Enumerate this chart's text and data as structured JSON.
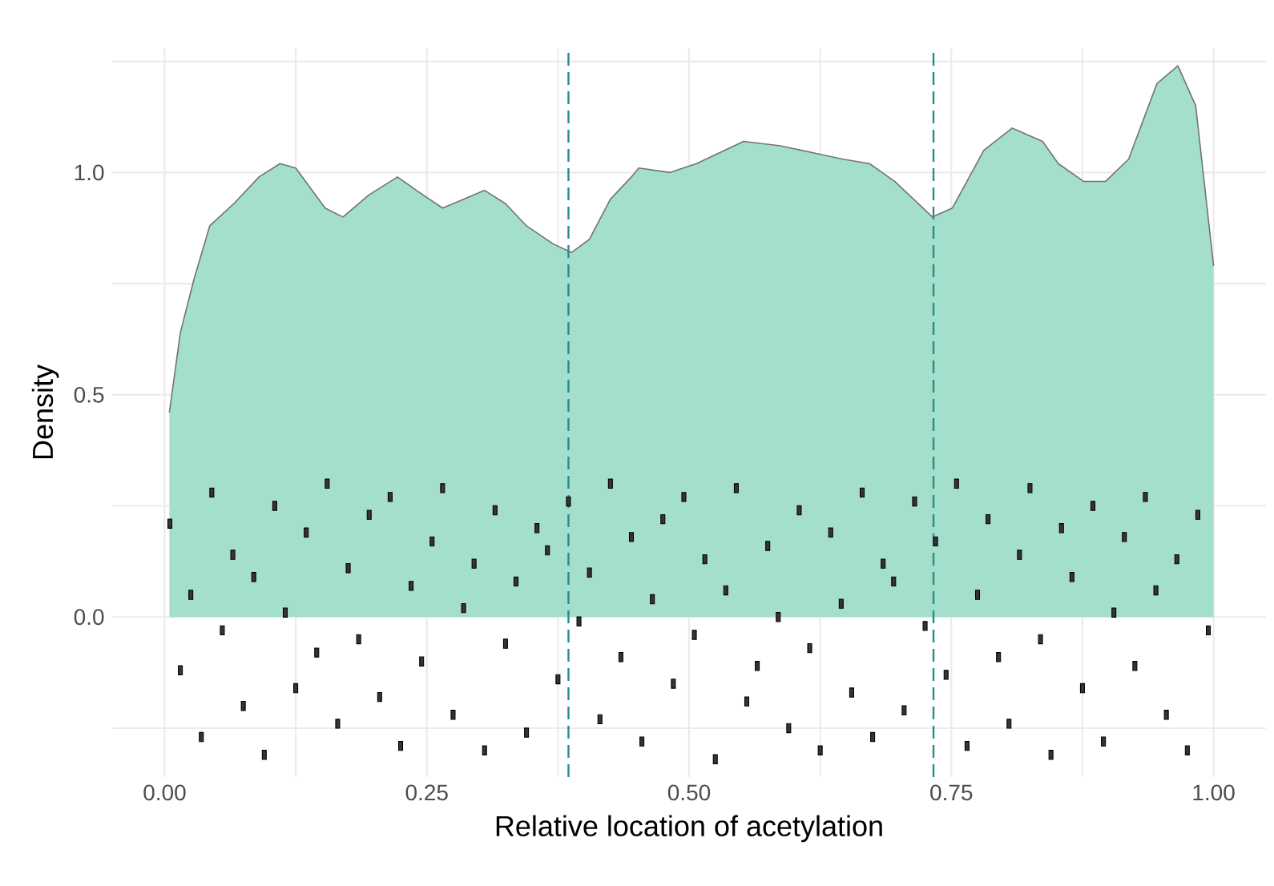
{
  "chart_data": {
    "type": "area",
    "xlabel": "Relative location of acetylation",
    "ylabel": "Density",
    "xlim": [
      -0.05,
      1.05
    ],
    "ylim": [
      -0.36,
      1.28
    ],
    "xticks": [
      {
        "value": 0,
        "label": "0.00"
      },
      {
        "value": 0.125,
        "label": null
      },
      {
        "value": 0.25,
        "label": "0.25"
      },
      {
        "value": 0.375,
        "label": null
      },
      {
        "value": 0.5,
        "label": "0.50"
      },
      {
        "value": 0.625,
        "label": null
      },
      {
        "value": 0.75,
        "label": "0.75"
      },
      {
        "value": 0.875,
        "label": null
      },
      {
        "value": 1,
        "label": "1.00"
      }
    ],
    "yticks": [
      {
        "value": -0.25,
        "label": null
      },
      {
        "value": 0,
        "label": "0.0"
      },
      {
        "value": 0.25,
        "label": null
      },
      {
        "value": 0.5,
        "label": "0.5"
      },
      {
        "value": 0.75,
        "label": null
      },
      {
        "value": 1,
        "label": "1.0"
      },
      {
        "value": 1.25,
        "label": null
      }
    ],
    "grid": true,
    "ref_lines": [
      {
        "axis": "x",
        "value": 0.385,
        "color": "#2a8c8c",
        "line_style": "dashed"
      },
      {
        "axis": "x",
        "value": 0.733,
        "color": "#2a8c8c",
        "line_style": "dashed"
      }
    ],
    "series": [
      {
        "color": "#a3dfcb",
        "x": [
          0.0045,
          0.015,
          0.028,
          0.043,
          0.066,
          0.09,
          0.11,
          0.125,
          0.153,
          0.17,
          0.195,
          0.222,
          0.24,
          0.265,
          0.285,
          0.305,
          0.325,
          0.345,
          0.37,
          0.388,
          0.405,
          0.425,
          0.445,
          0.452,
          0.482,
          0.507,
          0.552,
          0.587,
          0.647,
          0.672,
          0.696,
          0.732,
          0.751,
          0.781,
          0.808,
          0.837,
          0.852,
          0.876,
          0.897,
          0.919,
          0.946,
          0.966,
          0.983,
          1.0
        ],
        "values": [
          0.46,
          0.64,
          0.76,
          0.88,
          0.93,
          0.99,
          1.02,
          1.01,
          0.92,
          0.9,
          0.95,
          0.99,
          0.96,
          0.92,
          0.94,
          0.96,
          0.93,
          0.88,
          0.84,
          0.82,
          0.85,
          0.94,
          0.99,
          1.01,
          1.0,
          1.02,
          1.07,
          1.06,
          1.03,
          1.02,
          0.98,
          0.9,
          0.92,
          1.05,
          1.1,
          1.07,
          1.02,
          0.98,
          0.98,
          1.03,
          1.2,
          1.24,
          1.15,
          0.79
        ]
      },
      {
        "type": "scatter",
        "color": "#3b2f40",
        "x": [
          0.005,
          0.015,
          0.025,
          0.035,
          0.045,
          0.055,
          0.065,
          0.075,
          0.085,
          0.095,
          0.105,
          0.115,
          0.125,
          0.135,
          0.145,
          0.155,
          0.165,
          0.175,
          0.185,
          0.195,
          0.205,
          0.215,
          0.225,
          0.235,
          0.245,
          0.255,
          0.265,
          0.275,
          0.285,
          0.295,
          0.305,
          0.315,
          0.325,
          0.335,
          0.345,
          0.355,
          0.365,
          0.375,
          0.385,
          0.395,
          0.405,
          0.415,
          0.425,
          0.435,
          0.445,
          0.455,
          0.465,
          0.475,
          0.485,
          0.495,
          0.505,
          0.515,
          0.525,
          0.535,
          0.545,
          0.555,
          0.565,
          0.575,
          0.585,
          0.595,
          0.605,
          0.615,
          0.625,
          0.635,
          0.645,
          0.655,
          0.665,
          0.675,
          0.685,
          0.695,
          0.705,
          0.715,
          0.725,
          0.735,
          0.745,
          0.755,
          0.765,
          0.775,
          0.785,
          0.795,
          0.805,
          0.815,
          0.825,
          0.835,
          0.845,
          0.855,
          0.865,
          0.875,
          0.885,
          0.895,
          0.905,
          0.915,
          0.925,
          0.935,
          0.945,
          0.955,
          0.965,
          0.975,
          0.985,
          0.995
        ],
        "values": [
          0.21,
          -0.12,
          0.05,
          -0.27,
          0.28,
          -0.03,
          0.14,
          -0.2,
          0.09,
          -0.31,
          0.25,
          0.01,
          -0.16,
          0.19,
          -0.08,
          0.3,
          -0.24,
          0.11,
          -0.05,
          0.23,
          -0.18,
          0.27,
          -0.29,
          0.07,
          -0.1,
          0.17,
          0.29,
          -0.22,
          0.02,
          0.12,
          -0.3,
          0.24,
          -0.06,
          0.08,
          -0.26,
          0.2,
          0.15,
          -0.14,
          0.26,
          -0.01,
          0.1,
          -0.23,
          0.3,
          -0.09,
          0.18,
          -0.28,
          0.04,
          0.22,
          -0.15,
          0.27,
          -0.04,
          0.13,
          -0.32,
          0.06,
          0.29,
          -0.19,
          -0.11,
          0.16,
          0.0,
          -0.25,
          0.24,
          -0.07,
          -0.3,
          0.19,
          0.03,
          -0.17,
          0.28,
          -0.27,
          0.12,
          0.08,
          -0.21,
          0.26,
          -0.02,
          0.17,
          -0.13,
          0.3,
          -0.29,
          0.05,
          0.22,
          -0.09,
          -0.24,
          0.14,
          0.29,
          -0.05,
          -0.31,
          0.2,
          0.09,
          -0.16,
          0.25,
          -0.28,
          0.01,
          0.18,
          -0.11,
          0.27,
          0.06,
          -0.22,
          0.13,
          -0.3,
          0.23,
          -0.03
        ]
      }
    ]
  }
}
